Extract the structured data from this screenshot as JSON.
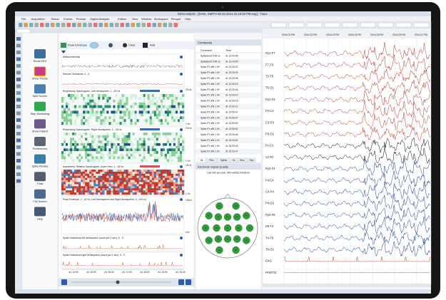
{
  "window": {
    "title": "EEGAnalysis - [DANI, SMITH 06-24-2014 01:16:03 PM.eeg] - Trace",
    "menu": [
      "File",
      "Acquisition",
      "Status",
      "Events",
      "Periods",
      "Digital Analysis",
      "Edition",
      "View",
      "Window",
      "Workspace",
      "Persyst",
      "Help"
    ]
  },
  "sidebar": [
    "Show EEG",
    "Show Trends",
    "Split Screen",
    "Stop Monitoring",
    "Show Patient",
    "Preferences",
    "Spike Review",
    "Tools",
    "Full Screen",
    "Help"
  ],
  "trends": {
    "toolbar": [
      "Peak Envelope",
      "Clear",
      "Add"
    ],
    "panels": [
      "Artifact Intensity",
      "Seizure Detections, 0 - 3",
      "Rhythmicity Spectrogram, Left Hemisphere, 1 - 25 Hz",
      "Rhythmicity Spectrogram, Right Hemisphere, 1 - 25 Hz",
      "Asymmetry, Relative Spectrogram, Asym Hem, 1 - 18 Hz",
      "Peak Envelope, 2 - 20 Hz, Left Hemisphere and Right Hemisphere, 0 - 100 uV",
      "Spike Detections left hemisphere (count per 1 sec), 0 - 3",
      "Spike Detections right hemisphere (count per 1 sec), 0 - 3"
    ],
    "scales": [
      "25 Hz",
      "1 Hz",
      "25 Hz",
      "1 Hz",
      "18 Hz",
      "1 Hz",
      "100uV",
      "0uV"
    ],
    "times": [
      "d1 14:00",
      "d1 15:00",
      "d1 16:00",
      "d1 17:00",
      "d1 18:00",
      "d1 19:00",
      "d1 19:40"
    ]
  },
  "comments": {
    "title": "Comments",
    "columns": [
      "Comment",
      "Time"
    ],
    "rows": [
      [
        "SpikeBurst 0.89 1s",
        "d1 13:43:48"
      ],
      [
        "SpikeBurst 0.85 1s",
        "d1 13:43:50"
      ],
      [
        "Spike P2 afN 1.00",
        "d1 13:29:02"
      ],
      [
        "Spike P2 afN 1.00",
        "d1 13:29:03"
      ],
      [
        "Spike P2 afN 1.00",
        "d1 13:29:05"
      ],
      [
        "Spike P2 afN 1.00",
        "d1 13:30:19"
      ],
      [
        "Spike P2 afN 1.00",
        "d1 13:30:24"
      ],
      [
        "Spike P2 afN 1.00",
        "d1 13:43:10"
      ],
      [
        "Spike P2 afN 1.00",
        "d1 13:43:15"
      ],
      [
        "Spike P2 afN 1.00",
        "d1 14:00:11"
      ],
      [
        "Spike P2 afN 1.00",
        "d1 14:05:07"
      ],
      [
        "Spike P2 afN 1.00",
        "d1 14:06:07"
      ],
      [
        "Spike P2 afN 1.00",
        "d1 14:50:50"
      ],
      [
        "Spike P2 afN 1.00",
        "d1 14:56:40"
      ],
      [
        "Spike P2 afN 1.00",
        "d1 15:26:46"
      ],
      [
        "Spike P2 afN 1.00",
        "d1 15:26:50"
      ],
      [
        "Spike P2 afN 1.00",
        "d1 15:29:29"
      ],
      [
        "Spike P2 afN 1.00",
        "d1 15:29:47"
      ]
    ],
    "tabs": [
      "All",
      "Pttrn",
      "Spikes",
      "Sz",
      "Bios",
      "Rep"
    ]
  },
  "quality": {
    "title": "Electrode Signal Quality",
    "subtitle": "Last 300 seconds, 95% artifact threshold",
    "electrodes": [
      "Fp1",
      "Fp2",
      "F7",
      "F3",
      "Fz",
      "F4",
      "F8",
      "T3",
      "C3",
      "Cz",
      "C4",
      "T4",
      "T5",
      "P3",
      "Pz",
      "P4",
      "T6",
      "O1",
      "O2"
    ]
  },
  "eeg": {
    "channels": [
      "Fp1-F7",
      "F7-T3",
      "T3-T5",
      "T5-O1",
      "Fp1-F3",
      "F3-C3",
      "C3-P3",
      "P3-O1",
      "Fz-Cz",
      "Cz-Pz",
      "Fp2-F4",
      "F4-C4",
      "C4-P4",
      "P4-O2",
      "Fp2-F8",
      "F8-T4",
      "T4-T6",
      "T6-O2",
      "EKG",
      "PHOTIC"
    ],
    "times": [
      "03:04:21 PM",
      "03:04:22 PM",
      "03:04:23 PM",
      "03:04:24 PM",
      "03:04:25 PM",
      "03:04:26 PM",
      "03:04:27 PM"
    ]
  }
}
